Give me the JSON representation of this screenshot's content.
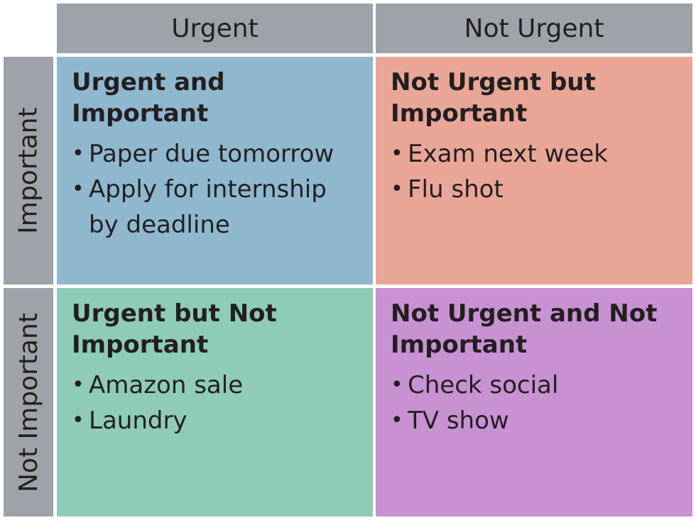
{
  "columns": {
    "urgent": "Urgent",
    "not_urgent": "Not Urgent"
  },
  "rows": {
    "important": "Important",
    "not_important": "Not Important"
  },
  "quadrants": {
    "urgent_important": {
      "title": "Urgent and Important",
      "items": [
        "Paper due tomorrow",
        "Apply for internship by deadline"
      ],
      "color": "#8fb8cf"
    },
    "not_urgent_important": {
      "title": "Not Urgent but Important",
      "items": [
        "Exam next week",
        "Flu shot"
      ],
      "color": "#e9a697"
    },
    "urgent_not_important": {
      "title": "Urgent but Not Important",
      "items": [
        "Amazon sale",
        "Laundry"
      ],
      "color": "#8ecbb9"
    },
    "not_urgent_not_important": {
      "title": "Not Urgent and Not Important",
      "items": [
        "Check social",
        "TV show"
      ],
      "color": "#c891d2"
    }
  },
  "header_color": "#9fa3a9"
}
